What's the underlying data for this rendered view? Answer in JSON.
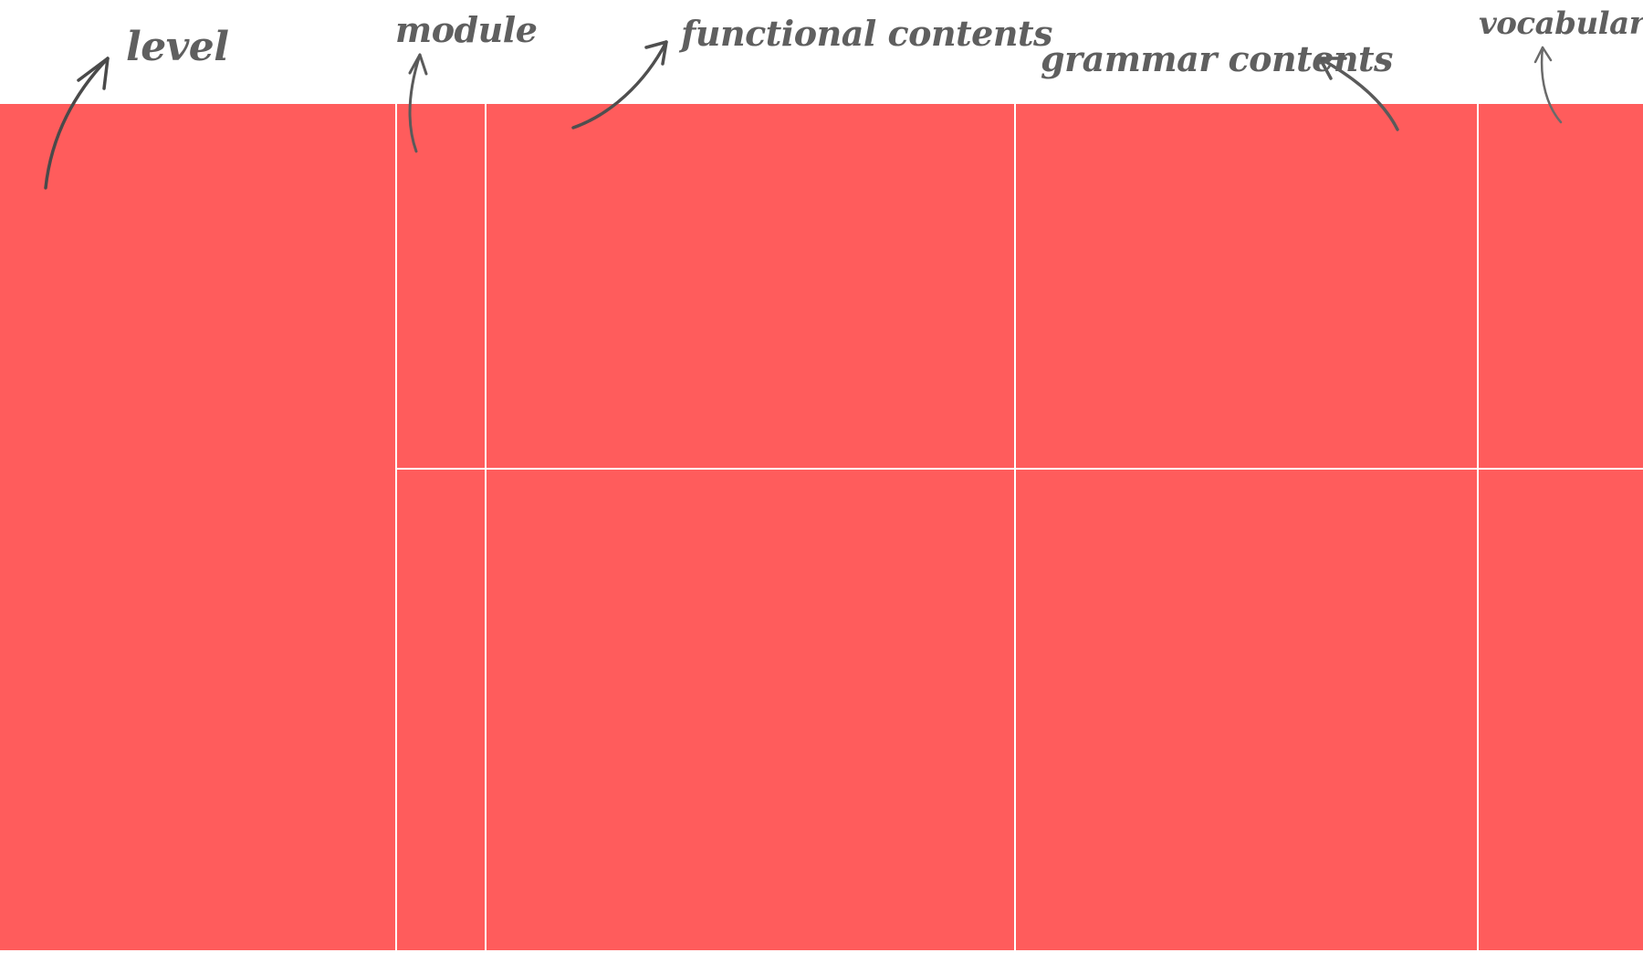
{
  "labels": {
    "level": "level",
    "module": "module",
    "functional": "functional contents",
    "grammar": "grammar contents",
    "vocabulary": "vocabulary"
  },
  "colors": {
    "cell_fill": "#ff5c5c",
    "gridline": "#ffffff",
    "annotation": "#5f5f5f",
    "background": "#ffffff"
  },
  "structure": {
    "columns": [
      "level",
      "module",
      "functional contents",
      "grammar contents",
      "vocabulary"
    ],
    "rows": 2,
    "level_spans_all_rows": true
  }
}
